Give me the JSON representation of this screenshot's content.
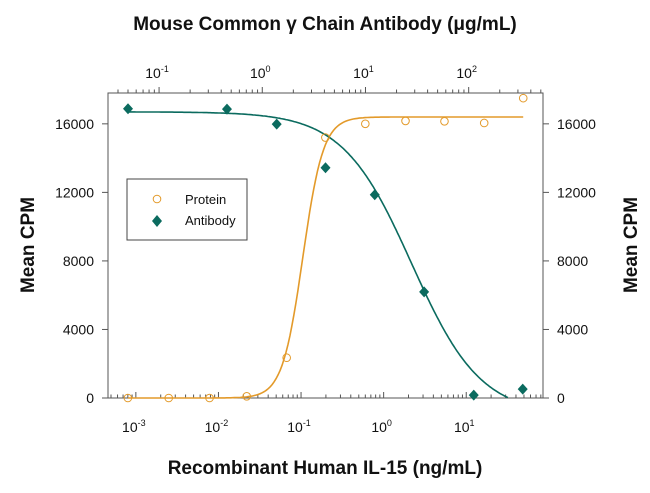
{
  "chart_data": {
    "type": "scatter",
    "title": "Mouse Common γ Chain Antibody (μg/mL)",
    "xlabel": "Recombinant Human IL-15 (ng/mL)",
    "ylabel": "Mean CPM",
    "ylabel_right": "Mean CPM",
    "x_scale": "log",
    "x2_scale": "log",
    "xlim": [
      0.00046,
      85
    ],
    "x2lim": [
      0.032,
      525
    ],
    "ylim": [
      0,
      17800
    ],
    "x_ticks": [
      {
        "base": "10",
        "exp": "-3",
        "v": 0.001
      },
      {
        "base": "10",
        "exp": "-2",
        "v": 0.01
      },
      {
        "base": "10",
        "exp": "-1",
        "v": 0.1
      },
      {
        "base": "10",
        "exp": "0",
        "v": 1
      },
      {
        "base": "10",
        "exp": "1",
        "v": 10
      }
    ],
    "x2_ticks": [
      {
        "base": "10",
        "exp": "-1",
        "v": 0.1
      },
      {
        "base": "10",
        "exp": "0",
        "v": 1
      },
      {
        "base": "10",
        "exp": "1",
        "v": 10
      },
      {
        "base": "10",
        "exp": "2",
        "v": 100
      }
    ],
    "y_ticks": [
      "0",
      "4000",
      "8000",
      "12000",
      "16000"
    ],
    "grid": false,
    "legend_position": "upper-left",
    "colors": {
      "protein": "#e39a2a",
      "antibody": "#0b6b5f"
    },
    "series": [
      {
        "name": "Protein",
        "axis": "bottom",
        "marker": "open-circle",
        "x": [
          0.0008,
          0.0025,
          0.0078,
          0.022,
          0.067,
          0.197,
          0.6,
          1.84,
          5.45,
          16.5,
          49
        ],
        "y": [
          0,
          0,
          0,
          100,
          2350,
          15200,
          16000,
          16170,
          16150,
          16050,
          17500
        ]
      },
      {
        "name": "Antibody",
        "axis": "top",
        "marker": "filled-diamond",
        "x": [
          0.05,
          0.455,
          1.38,
          4.1,
          12.3,
          37,
          112,
          334
        ],
        "y": [
          16880,
          16860,
          15980,
          13440,
          11860,
          6190,
          170,
          520
        ]
      }
    ]
  }
}
